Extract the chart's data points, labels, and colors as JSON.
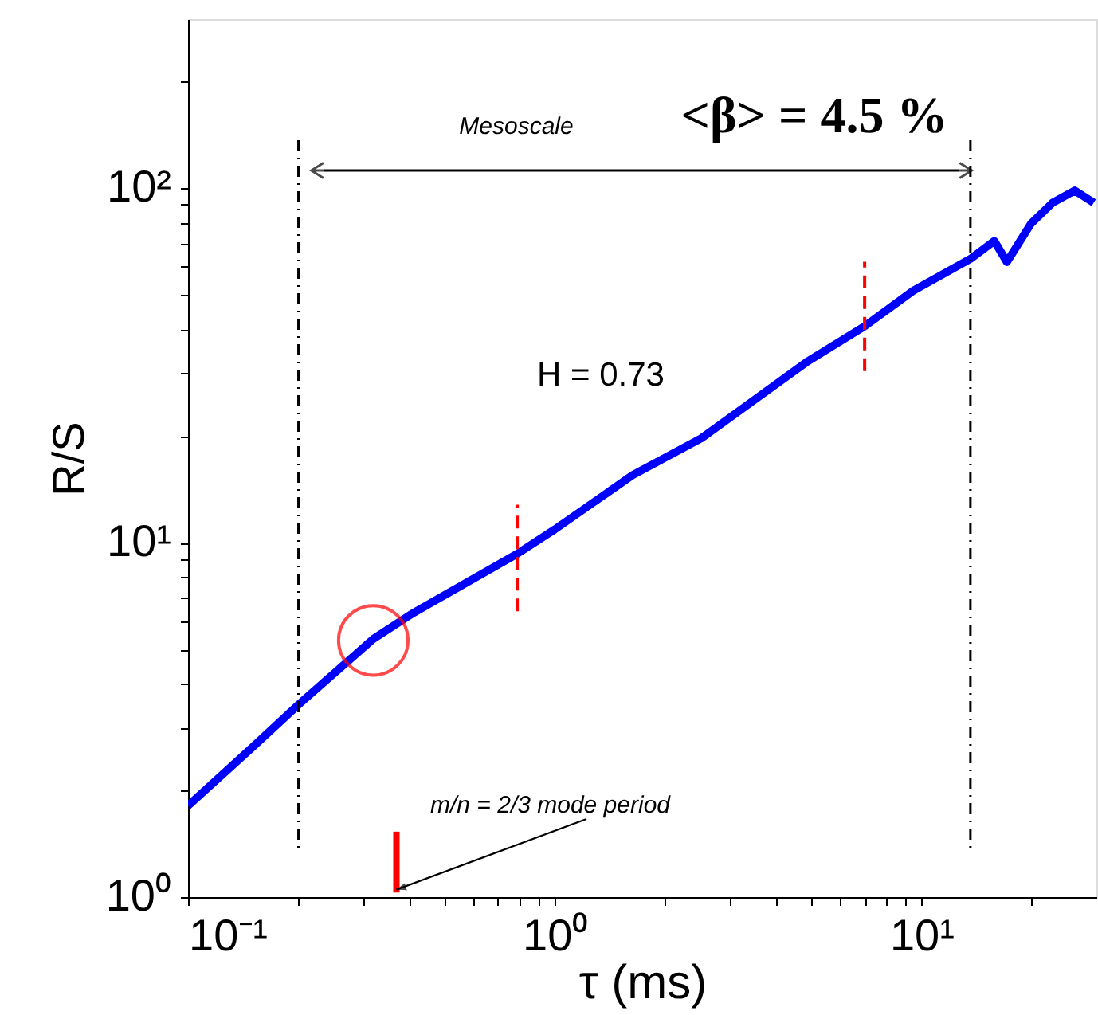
{
  "chart_data": {
    "type": "line",
    "xlabel": "τ (ms)",
    "ylabel": "R/S",
    "log": "xy",
    "grid": false,
    "xlim": [
      0.1,
      30
    ],
    "ylim": [
      1,
      300
    ],
    "xticks": [
      {
        "value": 0.1,
        "label": "10⁻¹"
      },
      {
        "value": 0.2,
        "label": null
      },
      {
        "value": 0.3,
        "label": null
      },
      {
        "value": 0.4,
        "label": null
      },
      {
        "value": 0.5,
        "label": null
      },
      {
        "value": 0.6,
        "label": null
      },
      {
        "value": 0.7,
        "label": null
      },
      {
        "value": 0.8,
        "label": null
      },
      {
        "value": 0.9,
        "label": null
      },
      {
        "value": 1,
        "label": "10⁰"
      },
      {
        "value": 2,
        "label": null
      },
      {
        "value": 3,
        "label": null
      },
      {
        "value": 4,
        "label": null
      },
      {
        "value": 5,
        "label": null
      },
      {
        "value": 6,
        "label": null
      },
      {
        "value": 7,
        "label": null
      },
      {
        "value": 8,
        "label": null
      },
      {
        "value": 9,
        "label": null
      },
      {
        "value": 10,
        "label": "10¹"
      },
      {
        "value": 20,
        "label": null
      }
    ],
    "yticks": [
      {
        "value": 1,
        "label": "10⁰"
      },
      {
        "value": 2,
        "label": null
      },
      {
        "value": 3,
        "label": null
      },
      {
        "value": 4,
        "label": null
      },
      {
        "value": 5,
        "label": null
      },
      {
        "value": 6,
        "label": null
      },
      {
        "value": 7,
        "label": null
      },
      {
        "value": 8,
        "label": null
      },
      {
        "value": 9,
        "label": null
      },
      {
        "value": 10,
        "label": "10¹"
      },
      {
        "value": 20,
        "label": null
      },
      {
        "value": 30,
        "label": null
      },
      {
        "value": 40,
        "label": null
      },
      {
        "value": 50,
        "label": null
      },
      {
        "value": 60,
        "label": null
      },
      {
        "value": 70,
        "label": null
      },
      {
        "value": 80,
        "label": null
      },
      {
        "value": 90,
        "label": null
      },
      {
        "value": 100,
        "label": "10²"
      },
      {
        "value": 200,
        "label": null
      }
    ],
    "series": [
      {
        "color": "#0000ff",
        "line_style": "solid",
        "marker": "none",
        "x": [
          0.1,
          0.15,
          0.2,
          0.32,
          0.41,
          0.79,
          1,
          1.63,
          2.51,
          4.9,
          7.0,
          9.5,
          13.6,
          15.8,
          17.1,
          19.9,
          22.8,
          26.2,
          29.5
        ],
        "values": [
          1.81,
          2.65,
          3.49,
          5.35,
          6.32,
          9.3,
          10.9,
          15.5,
          19.7,
          32.5,
          40.8,
          51.4,
          63.2,
          71,
          61.9,
          79.5,
          91,
          98.5,
          91
        ]
      },
      {
        "color": "#ff0000",
        "line_style": "dashed",
        "marker": "none",
        "x": [
          0.79,
          0.79
        ],
        "values": [
          6.4,
          12.8
        ]
      },
      {
        "color": "#ff0000",
        "line_style": "dashed",
        "marker": "none",
        "x": [
          7.0,
          7.0
        ],
        "values": [
          30.5,
          62
        ]
      },
      {
        "color": "#ff0000",
        "line_style": "solid",
        "marker": "none",
        "x": [
          0.37,
          0.37
        ],
        "values": [
          1.03,
          1.53
        ]
      },
      {
        "type": "scatter",
        "color": "#ff0000",
        "marker": "circle",
        "x": [
          0.32
        ],
        "values": [
          5.3
        ]
      }
    ],
    "ref_lines": [
      {
        "axis": "x",
        "value": 0.2,
        "label": null,
        "color": "#000000",
        "line_style": "dashed"
      },
      {
        "axis": "x",
        "value": 13.6,
        "label": null,
        "color": "#000000",
        "line_style": "dashed"
      }
    ],
    "annotations": [
      "Mesoscale",
      "<β> = 4.5 %",
      "H = 0.73",
      {
        "text": "m/n = 2/3 mode period",
        "x": 0.37,
        "y": 1.05
      }
    ]
  }
}
